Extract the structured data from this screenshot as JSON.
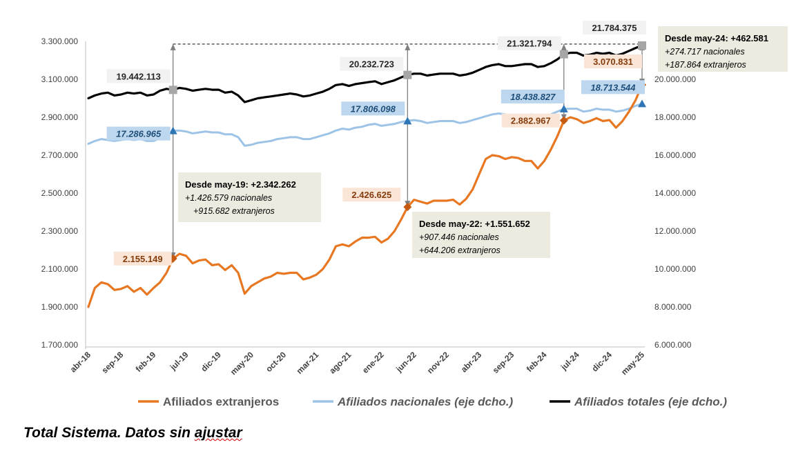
{
  "chart_data": {
    "type": "line",
    "x": [
      "abr-18",
      "may-18",
      "jun-18",
      "jul-18",
      "ago-18",
      "sep-18",
      "oct-18",
      "nov-18",
      "dic-18",
      "ene-19",
      "feb-19",
      "mar-19",
      "abr-19",
      "may-19",
      "jun-19",
      "jul-19",
      "ago-19",
      "sep-19",
      "oct-19",
      "nov-19",
      "dic-19",
      "ene-20",
      "feb-20",
      "mar-20",
      "abr-20",
      "may-20",
      "jun-20",
      "jul-20",
      "ago-20",
      "sep-20",
      "oct-20",
      "nov-20",
      "dic-20",
      "ene-21",
      "feb-21",
      "mar-21",
      "abr-21",
      "may-21",
      "jun-21",
      "jul-21",
      "ago-21",
      "sep-21",
      "oct-21",
      "nov-21",
      "dic-21",
      "ene-22",
      "feb-22",
      "mar-22",
      "abr-22",
      "may-22",
      "jun-22",
      "jul-22",
      "ago-22",
      "sep-22",
      "oct-22",
      "nov-22",
      "dic-22",
      "ene-23",
      "feb-23",
      "mar-23",
      "abr-23",
      "may-23",
      "jun-23",
      "jul-23",
      "ago-23",
      "sep-23",
      "oct-23",
      "nov-23",
      "dic-23",
      "ene-24",
      "feb-24",
      "mar-24",
      "abr-24",
      "may-24",
      "jun-24",
      "jul-24",
      "ago-24",
      "sep-24",
      "oct-24",
      "nov-24",
      "dic-24",
      "ene-25",
      "feb-25",
      "mar-25",
      "abr-25",
      "may-25"
    ],
    "x_tick_labels": [
      "abr-18",
      "sep-18",
      "feb-19",
      "jul-19",
      "dic-19",
      "may-20",
      "oct-20",
      "mar-21",
      "ago-21",
      "ene-22",
      "jun-22",
      "nov-22",
      "abr-23",
      "sep-23",
      "feb-24",
      "jul-24",
      "dic-24",
      "may-25"
    ],
    "y_left": {
      "ylim": [
        1700000,
        3300000
      ],
      "ticks": [
        "1.700.000",
        "1.900.000",
        "2.100.000",
        "2.300.000",
        "2.500.000",
        "2.700.000",
        "2.900.000",
        "3.100.000",
        "3.300.000"
      ]
    },
    "y_right": {
      "ylim": [
        6000000,
        22000000
      ],
      "ticks": [
        "6.000.000",
        "8.000.000",
        "10.000.000",
        "12.000.000",
        "14.000.000",
        "16.000.000",
        "18.000.000",
        "20.000.000"
      ]
    },
    "series": [
      {
        "name": "Afiliados extranjeros",
        "axis": "left",
        "color": "#E87722",
        "values": [
          1900000,
          2000000,
          2030000,
          2020000,
          1990000,
          1995000,
          2010000,
          1980000,
          2000000,
          1965000,
          2000000,
          2030000,
          2080000,
          2155149,
          2180000,
          2170000,
          2130000,
          2145000,
          2150000,
          2120000,
          2125000,
          2095000,
          2120000,
          2080000,
          1970000,
          2010000,
          2030000,
          2050000,
          2060000,
          2080000,
          2075000,
          2080000,
          2080000,
          2045000,
          2055000,
          2070000,
          2100000,
          2150000,
          2220000,
          2230000,
          2220000,
          2245000,
          2265000,
          2265000,
          2270000,
          2240000,
          2260000,
          2300000,
          2360000,
          2426625,
          2465000,
          2455000,
          2445000,
          2460000,
          2460000,
          2460000,
          2465000,
          2440000,
          2470000,
          2520000,
          2600000,
          2680000,
          2700000,
          2695000,
          2680000,
          2690000,
          2685000,
          2670000,
          2670000,
          2630000,
          2670000,
          2730000,
          2800000,
          2882967,
          2900000,
          2890000,
          2870000,
          2880000,
          2895000,
          2880000,
          2885000,
          2845000,
          2880000,
          2930000,
          2990000,
          3070831
        ]
      },
      {
        "name": "Afiliados nacionales (eje dcho.)",
        "axis": "right",
        "color": "#9DC3E6",
        "values": [
          16600000,
          16750000,
          16850000,
          16800000,
          16750000,
          16800000,
          16850000,
          16800000,
          16850000,
          16750000,
          16750000,
          16900000,
          17000000,
          17286965,
          17300000,
          17250000,
          17150000,
          17200000,
          17250000,
          17200000,
          17200000,
          17100000,
          17100000,
          16950000,
          16500000,
          16550000,
          16650000,
          16700000,
          16750000,
          16850000,
          16900000,
          16950000,
          16950000,
          16850000,
          16850000,
          16950000,
          17050000,
          17150000,
          17300000,
          17400000,
          17350000,
          17450000,
          17500000,
          17600000,
          17650000,
          17550000,
          17600000,
          17650000,
          17750000,
          17806098,
          17850000,
          17800000,
          17700000,
          17750000,
          17800000,
          17800000,
          17800000,
          17700000,
          17750000,
          17850000,
          17950000,
          18050000,
          18150000,
          18200000,
          18150000,
          18050000,
          18100000,
          18100000,
          18150000,
          18000000,
          18050000,
          18150000,
          18300000,
          18438827,
          18450000,
          18450000,
          18300000,
          18350000,
          18450000,
          18400000,
          18400000,
          18300000,
          18350000,
          18450000,
          18600000,
          18713544
        ]
      },
      {
        "name": "Afiliados totales (eje dcho.)",
        "axis": "right",
        "color": "#000000",
        "values": [
          19000000,
          19150000,
          19250000,
          19300000,
          19150000,
          19200000,
          19300000,
          19250000,
          19300000,
          19150000,
          19200000,
          19400000,
          19500000,
          19442113,
          19550000,
          19500000,
          19400000,
          19450000,
          19500000,
          19450000,
          19450000,
          19300000,
          19350000,
          19150000,
          18800000,
          18900000,
          19000000,
          19050000,
          19100000,
          19150000,
          19200000,
          19250000,
          19200000,
          19100000,
          19150000,
          19250000,
          19350000,
          19500000,
          19700000,
          19750000,
          19650000,
          19750000,
          19800000,
          19850000,
          19900000,
          19750000,
          19850000,
          19950000,
          20100000,
          20232723,
          20300000,
          20300000,
          20200000,
          20250000,
          20300000,
          20300000,
          20300000,
          20200000,
          20250000,
          20350000,
          20500000,
          20650000,
          20750000,
          20800000,
          20700000,
          20700000,
          20750000,
          20800000,
          20800000,
          20650000,
          20700000,
          20850000,
          21050000,
          21321794,
          21400000,
          21400000,
          21250000,
          21300000,
          21400000,
          21350000,
          21400000,
          21250000,
          21350000,
          21500000,
          21650000,
          21784375
        ]
      }
    ],
    "markers": [
      {
        "series": 1,
        "x": "may-19",
        "label": "17.286.965"
      },
      {
        "series": 2,
        "x": "may-19",
        "label": "19.442.113"
      },
      {
        "series": 0,
        "x": "may-19",
        "label": "2.155.149"
      },
      {
        "series": 1,
        "x": "may-22",
        "label": "17.806.098"
      },
      {
        "series": 2,
        "x": "may-22",
        "label": "20.232.723"
      },
      {
        "series": 0,
        "x": "may-22",
        "label": "2.426.625"
      },
      {
        "series": 1,
        "x": "may-24",
        "label": "18.438.827"
      },
      {
        "series": 2,
        "x": "may-24",
        "label": "21.321.794"
      },
      {
        "series": 0,
        "x": "may-24",
        "label": "2.882.967"
      },
      {
        "series": 1,
        "x": "may-25",
        "label": "18.713.544"
      },
      {
        "series": 2,
        "x": "may-25",
        "label": "21.784.375"
      },
      {
        "series": 0,
        "x": "may-25",
        "label": "3.070.831"
      }
    ],
    "annotations": [
      {
        "title": "Desde may-19: +2.342.262",
        "line1": "+1.426.579 nacionales",
        "line2": "+915.682 extranjeros"
      },
      {
        "title": "Desde may-22: +1.551.652",
        "line1": "+907.446 nacionales",
        "line2": "+644.206 extranjeros"
      },
      {
        "title": "Desde may-24: +462.581",
        "line1": "+274.717 nacionales",
        "line2": "+187.864 extranjeros"
      }
    ],
    "grid": false,
    "legend": "bottom"
  },
  "footnote": {
    "prefix": "Total Sistema. Datos sin ",
    "underlined": "ajustar"
  }
}
